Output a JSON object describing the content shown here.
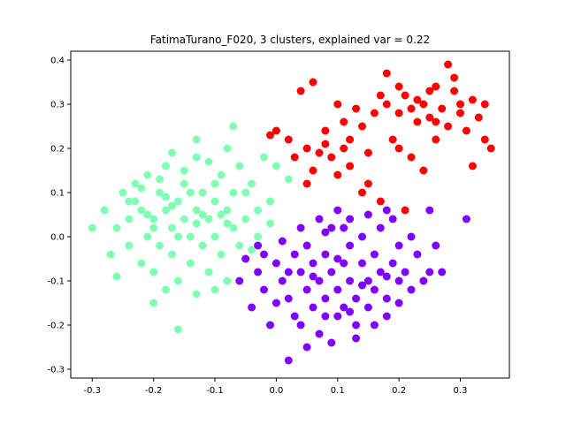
{
  "chart_data": {
    "type": "scatter",
    "title": "FatimaTurano_F020, 3 clusters, explained var = 0.22",
    "xlabel": "",
    "ylabel": "",
    "xlim": [
      -0.335,
      0.38
    ],
    "ylim": [
      -0.32,
      0.42
    ],
    "xticks": [
      "-0.3",
      "-0.2",
      "-0.1",
      "0.0",
      "0.1",
      "0.2",
      "0.3"
    ],
    "yticks": [
      "-0.3",
      "-0.2",
      "-0.1",
      "0.0",
      "0.1",
      "0.2",
      "0.3",
      "0.4"
    ],
    "grid": false,
    "legend": "none",
    "series": [
      {
        "color": "#7f00ff",
        "points": [
          [
            -0.05,
            -0.05
          ],
          [
            -0.03,
            -0.08
          ],
          [
            -0.02,
            -0.12
          ],
          [
            -0.04,
            -0.16
          ],
          [
            -0.01,
            -0.2
          ],
          [
            0.0,
            -0.06
          ],
          [
            0.01,
            -0.1
          ],
          [
            0.02,
            -0.14
          ],
          [
            0.03,
            -0.04
          ],
          [
            0.03,
            -0.18
          ],
          [
            0.04,
            -0.08
          ],
          [
            0.05,
            -0.12
          ],
          [
            0.05,
            -0.02
          ],
          [
            0.06,
            -0.16
          ],
          [
            0.06,
            -0.06
          ],
          [
            0.07,
            -0.1
          ],
          [
            0.07,
            -0.22
          ],
          [
            0.08,
            -0.04
          ],
          [
            0.08,
            -0.14
          ],
          [
            0.09,
            -0.08
          ],
          [
            0.09,
            0.02
          ],
          [
            0.1,
            -0.12
          ],
          [
            0.1,
            -0.18
          ],
          [
            0.11,
            -0.06
          ],
          [
            0.11,
            -0.16
          ],
          [
            0.12,
            -0.02
          ],
          [
            0.12,
            -0.1
          ],
          [
            0.13,
            -0.14
          ],
          [
            0.13,
            -0.2
          ],
          [
            0.14,
            -0.06
          ],
          [
            0.14,
            0.0
          ],
          [
            0.15,
            -0.1
          ],
          [
            0.15,
            -0.16
          ],
          [
            0.16,
            -0.04
          ],
          [
            0.16,
            -0.12
          ],
          [
            0.17,
            -0.08
          ],
          [
            0.17,
            0.02
          ],
          [
            0.18,
            -0.14
          ],
          [
            0.18,
            -0.18
          ],
          [
            0.19,
            -0.06
          ],
          [
            0.19,
            0.04
          ],
          [
            0.2,
            -0.1
          ],
          [
            0.2,
            -0.02
          ],
          [
            0.21,
            -0.08
          ],
          [
            0.22,
            -0.12
          ],
          [
            0.22,
            0.0
          ],
          [
            0.23,
            -0.04
          ],
          [
            0.24,
            -0.1
          ],
          [
            0.25,
            -0.08
          ],
          [
            0.26,
            -0.02
          ],
          [
            -0.06,
            -0.1
          ],
          [
            -0.02,
            -0.04
          ],
          [
            0.0,
            -0.15
          ],
          [
            0.02,
            -0.08
          ],
          [
            0.04,
            -0.2
          ],
          [
            0.06,
            -0.09
          ],
          [
            0.08,
            -0.18
          ],
          [
            0.1,
            -0.05
          ],
          [
            0.12,
            -0.17
          ],
          [
            0.14,
            -0.11
          ],
          [
            0.16,
            -0.2
          ],
          [
            0.18,
            -0.09
          ],
          [
            0.2,
            -0.15
          ],
          [
            0.1,
            0.06
          ],
          [
            0.12,
            0.04
          ],
          [
            0.15,
            0.05
          ],
          [
            0.18,
            0.06
          ],
          [
            0.07,
            0.04
          ],
          [
            0.05,
            -0.25
          ],
          [
            0.09,
            -0.24
          ],
          [
            0.13,
            -0.23
          ],
          [
            0.02,
            -0.28
          ],
          [
            0.31,
            0.04
          ],
          [
            0.25,
            0.06
          ],
          [
            0.27,
            -0.08
          ],
          [
            -0.03,
            -0.02
          ],
          [
            0.01,
            -0.01
          ],
          [
            0.04,
            0.02
          ],
          [
            0.08,
            0.01
          ],
          [
            0.11,
            0.02
          ]
        ]
      },
      {
        "color": "#80ffb4",
        "points": [
          [
            -0.3,
            0.02
          ],
          [
            -0.28,
            0.06
          ],
          [
            -0.27,
            -0.04
          ],
          [
            -0.26,
            0.02
          ],
          [
            -0.25,
            0.1
          ],
          [
            -0.24,
            -0.02
          ],
          [
            -0.24,
            0.04
          ],
          [
            -0.23,
            0.12
          ],
          [
            -0.22,
            -0.06
          ],
          [
            -0.22,
            0.06
          ],
          [
            -0.21,
            0.0
          ],
          [
            -0.21,
            0.14
          ],
          [
            -0.2,
            -0.08
          ],
          [
            -0.2,
            0.04
          ],
          [
            -0.19,
            0.1
          ],
          [
            -0.19,
            -0.02
          ],
          [
            -0.18,
            0.06
          ],
          [
            -0.18,
            0.16
          ],
          [
            -0.17,
            -0.04
          ],
          [
            -0.17,
            0.02
          ],
          [
            -0.16,
            0.08
          ],
          [
            -0.16,
            -0.1
          ],
          [
            -0.15,
            0.04
          ],
          [
            -0.15,
            0.12
          ],
          [
            -0.14,
            -0.06
          ],
          [
            -0.14,
            0.0
          ],
          [
            -0.13,
            0.06
          ],
          [
            -0.13,
            0.18
          ],
          [
            -0.12,
            -0.02
          ],
          [
            -0.12,
            0.1
          ],
          [
            -0.11,
            0.04
          ],
          [
            -0.11,
            -0.08
          ],
          [
            -0.1,
            0.08
          ],
          [
            -0.1,
            0.0
          ],
          [
            -0.09,
            0.14
          ],
          [
            -0.09,
            -0.04
          ],
          [
            -0.08,
            0.06
          ],
          [
            -0.08,
            0.2
          ],
          [
            -0.07,
            0.02
          ],
          [
            -0.07,
            0.1
          ],
          [
            -0.06,
            -0.02
          ],
          [
            -0.06,
            0.16
          ],
          [
            -0.05,
            0.04
          ],
          [
            -0.04,
            0.12
          ],
          [
            -0.03,
            0.06
          ],
          [
            -0.02,
            0.18
          ],
          [
            -0.01,
            0.08
          ],
          [
            0.0,
            0.16
          ],
          [
            -0.2,
            -0.15
          ],
          [
            -0.16,
            -0.21
          ],
          [
            -0.13,
            -0.13
          ],
          [
            -0.1,
            -0.12
          ],
          [
            -0.08,
            -0.1
          ],
          [
            -0.18,
            -0.12
          ],
          [
            -0.26,
            -0.09
          ],
          [
            -0.23,
            0.08
          ],
          [
            -0.19,
            0.13
          ],
          [
            -0.15,
            0.15
          ],
          [
            -0.11,
            0.17
          ],
          [
            -0.07,
            0.25
          ],
          [
            -0.13,
            0.22
          ],
          [
            -0.17,
            0.19
          ],
          [
            -0.21,
            0.05
          ],
          [
            -0.17,
            0.07
          ],
          [
            -0.13,
            0.03
          ],
          [
            -0.09,
            0.05
          ],
          [
            -0.05,
            0.1
          ],
          [
            -0.03,
            0.0
          ],
          [
            -0.01,
            0.03
          ],
          [
            0.02,
            0.13
          ],
          [
            -0.24,
            0.08
          ],
          [
            -0.2,
            0.02
          ],
          [
            -0.16,
            0.0
          ],
          [
            -0.12,
            0.05
          ],
          [
            -0.08,
            0.03
          ],
          [
            -0.04,
            -0.03
          ],
          [
            -0.14,
            0.1
          ],
          [
            -0.1,
            0.12
          ],
          [
            -0.18,
            0.09
          ],
          [
            -0.22,
            0.11
          ]
        ]
      },
      {
        "color": "#ff0000",
        "points": [
          [
            -0.01,
            0.23
          ],
          [
            0.0,
            0.24
          ],
          [
            0.02,
            0.22
          ],
          [
            0.03,
            0.18
          ],
          [
            0.04,
            0.33
          ],
          [
            0.05,
            0.2
          ],
          [
            0.06,
            0.15
          ],
          [
            0.06,
            0.35
          ],
          [
            0.07,
            0.19
          ],
          [
            0.08,
            0.24
          ],
          [
            0.09,
            0.18
          ],
          [
            0.1,
            0.14
          ],
          [
            0.1,
            0.3
          ],
          [
            0.11,
            0.2
          ],
          [
            0.12,
            0.16
          ],
          [
            0.12,
            0.22
          ],
          [
            0.13,
            0.29
          ],
          [
            0.14,
            0.25
          ],
          [
            0.15,
            0.19
          ],
          [
            0.15,
            0.12
          ],
          [
            0.16,
            0.28
          ],
          [
            0.17,
            0.32
          ],
          [
            0.18,
            0.37
          ],
          [
            0.18,
            0.3
          ],
          [
            0.19,
            0.22
          ],
          [
            0.2,
            0.34
          ],
          [
            0.2,
            0.28
          ],
          [
            0.21,
            0.32
          ],
          [
            0.22,
            0.29
          ],
          [
            0.23,
            0.31
          ],
          [
            0.24,
            0.3
          ],
          [
            0.25,
            0.33
          ],
          [
            0.25,
            0.27
          ],
          [
            0.26,
            0.22
          ],
          [
            0.27,
            0.29
          ],
          [
            0.28,
            0.39
          ],
          [
            0.28,
            0.25
          ],
          [
            0.29,
            0.33
          ],
          [
            0.3,
            0.28
          ],
          [
            0.31,
            0.24
          ],
          [
            0.32,
            0.31
          ],
          [
            0.33,
            0.27
          ],
          [
            0.34,
            0.3
          ],
          [
            0.34,
            0.22
          ],
          [
            0.35,
            0.2
          ],
          [
            0.32,
            0.16
          ],
          [
            0.29,
            0.36
          ],
          [
            0.26,
            0.34
          ],
          [
            0.23,
            0.26
          ],
          [
            0.2,
            0.2
          ],
          [
            0.17,
            0.08
          ],
          [
            0.21,
            0.06
          ],
          [
            0.14,
            0.1
          ],
          [
            0.11,
            0.26
          ],
          [
            0.08,
            0.21
          ],
          [
            0.05,
            0.12
          ],
          [
            0.22,
            0.18
          ],
          [
            0.24,
            0.15
          ],
          [
            0.26,
            0.26
          ],
          [
            0.3,
            0.3
          ]
        ]
      }
    ]
  }
}
